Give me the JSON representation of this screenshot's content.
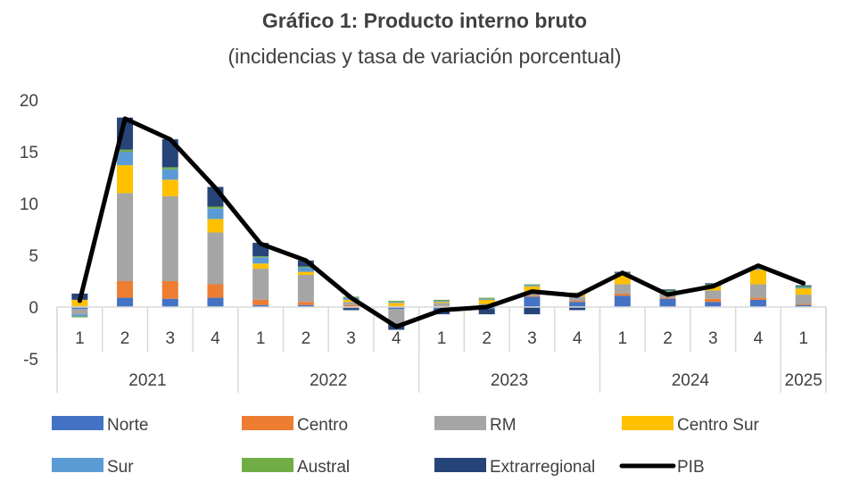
{
  "chart_data": {
    "type": "bar",
    "stacked": true,
    "title": "Gráfico 1: Producto interno bruto",
    "subtitle": "(incidencias y tasa de variación porcentual)",
    "ylim": [
      -5,
      20
    ],
    "yticks": [
      -5,
      0,
      5,
      10,
      15,
      20
    ],
    "categories": [
      "1",
      "2",
      "3",
      "4",
      "1",
      "2",
      "3",
      "4",
      "1",
      "2",
      "3",
      "4",
      "1",
      "2",
      "3",
      "4",
      "1"
    ],
    "years": [
      {
        "label": "2021",
        "count": 4
      },
      {
        "label": "2022",
        "count": 4
      },
      {
        "label": "2023",
        "count": 4
      },
      {
        "label": "2024",
        "count": 4
      },
      {
        "label": "2025",
        "count": 1
      }
    ],
    "series": [
      {
        "name": "Norte",
        "color": "#4472C4",
        "values": [
          -0.2,
          0.9,
          0.8,
          0.9,
          0.2,
          0.2,
          -0.1,
          -0.2,
          -0.3,
          -0.2,
          1.0,
          0.5,
          1.1,
          0.8,
          0.5,
          0.7,
          0.2
        ]
      },
      {
        "name": "Centro",
        "color": "#ED7D31",
        "values": [
          0.1,
          1.6,
          1.7,
          1.3,
          0.5,
          0.3,
          0.2,
          0.1,
          0.1,
          0.1,
          0.1,
          0.1,
          0.2,
          0.1,
          0.3,
          0.2,
          0.1
        ]
      },
      {
        "name": "RM",
        "color": "#A5A5A5",
        "values": [
          -0.5,
          8.5,
          8.2,
          5.0,
          3.0,
          2.6,
          0.3,
          -1.4,
          0.3,
          0.2,
          0.2,
          0.4,
          0.9,
          0.4,
          0.8,
          1.3,
          0.9
        ]
      },
      {
        "name": "Centro Sur",
        "color": "#FFC000",
        "values": [
          0.6,
          2.7,
          1.6,
          1.3,
          0.5,
          0.3,
          0.2,
          0.3,
          0.1,
          0.4,
          0.7,
          0.2,
          0.9,
          0.1,
          0.4,
          1.4,
          0.6
        ]
      },
      {
        "name": "Sur",
        "color": "#5B9BD5",
        "values": [
          -0.2,
          1.3,
          1.0,
          1.0,
          0.6,
          0.4,
          0.2,
          0.1,
          0.1,
          0.1,
          0.1,
          0.1,
          0.1,
          0.1,
          0.1,
          0.1,
          0.1
        ]
      },
      {
        "name": "Austral",
        "color": "#70AD47",
        "values": [
          -0.1,
          0.2,
          0.2,
          0.2,
          0.1,
          0.1,
          0.1,
          0.1,
          0.1,
          0.1,
          0.1,
          0.1,
          0.1,
          0.1,
          0.1,
          0.1,
          0.1
        ]
      },
      {
        "name": "Extrarregional",
        "color": "#264478",
        "values": [
          0.6,
          3.1,
          2.7,
          1.9,
          1.3,
          0.6,
          -0.2,
          -0.6,
          -0.4,
          -0.5,
          -0.7,
          -0.3,
          0.1,
          0.1,
          0.1,
          0.1,
          0.1
        ]
      }
    ],
    "line": {
      "name": "PIB",
      "color": "#000000",
      "values": [
        0.6,
        18.2,
        16.2,
        11.5,
        6.1,
        4.5,
        0.9,
        -1.9,
        -0.3,
        0.0,
        1.5,
        1.1,
        3.3,
        1.2,
        2.0,
        4.0,
        2.3
      ]
    },
    "legend_position": "bottom",
    "grid": false
  }
}
